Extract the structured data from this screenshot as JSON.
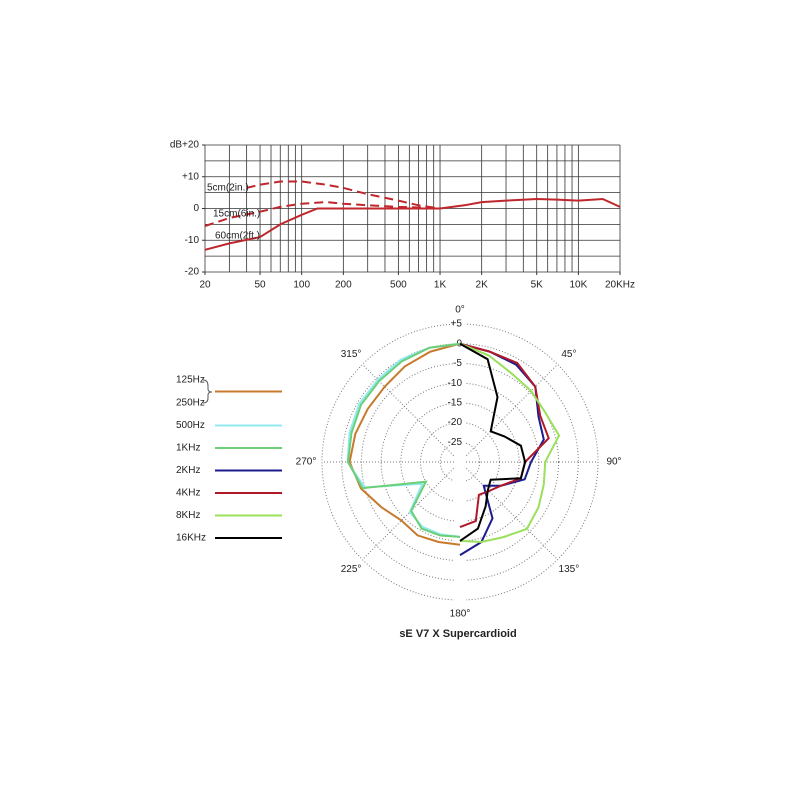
{
  "chart_data": [
    {
      "type": "line",
      "y_label": "dB",
      "xscale": "log",
      "xlim": [
        20,
        20000
      ],
      "xticks": [
        20,
        50,
        100,
        200,
        500,
        {
          "value": 1000,
          "label": "1K"
        },
        {
          "value": 2000,
          "label": "2K"
        },
        {
          "value": 5000,
          "label": "5K"
        },
        {
          "value": 10000,
          "label": "10K"
        },
        {
          "value": 20000,
          "label": "20KHz"
        }
      ],
      "xgrid": [
        20,
        30,
        40,
        50,
        60,
        70,
        80,
        90,
        100,
        200,
        300,
        400,
        500,
        600,
        700,
        800,
        900,
        1000,
        2000,
        3000,
        4000,
        5000,
        6000,
        7000,
        8000,
        9000,
        10000,
        20000
      ],
      "ylim": [
        -20,
        20
      ],
      "yticks": [
        -20,
        -10,
        0,
        {
          "value": 10,
          "label": "+10"
        },
        {
          "value": 20,
          "label": "+20"
        }
      ],
      "ygrid": [
        -20,
        -15,
        -10,
        -5,
        0,
        5,
        10,
        15,
        20
      ],
      "series": [
        {
          "name": "5cm(2in.)",
          "color": "#c0272d",
          "dash": true,
          "x": [
            40,
            50,
            70,
            100,
            150,
            200,
            300,
            500,
            700,
            1000
          ],
          "values": [
            6.5,
            7.5,
            8.5,
            8.5,
            7.5,
            6.5,
            4.5,
            2.5,
            1,
            0
          ]
        },
        {
          "name": "15cm(6in.)",
          "color": "#c0272d",
          "dash": true,
          "x": [
            20,
            30,
            50,
            70,
            100,
            150,
            200,
            300,
            500,
            700,
            1000
          ],
          "values": [
            -5.5,
            -3,
            -1,
            0.5,
            1.5,
            2,
            1.5,
            1,
            0.5,
            0.3,
            0
          ]
        },
        {
          "name": "60cm(2ft.)",
          "color": "#c0272d",
          "dash": false,
          "x": [
            20,
            30,
            50,
            70,
            100,
            130,
            200,
            300,
            500,
            700,
            1000,
            1500,
            2000,
            3000,
            5000,
            7000,
            10000,
            15000,
            20000
          ],
          "values": [
            -13,
            -11,
            -9,
            -5,
            -2,
            0,
            0,
            0,
            0,
            0,
            0,
            1,
            2,
            2.5,
            3,
            2.8,
            2.5,
            3,
            0.5
          ]
        }
      ]
    },
    {
      "type": "polar",
      "title": "sE V7 X  Supercardioid",
      "rlim": [
        -30,
        5
      ],
      "rticks": [
        {
          "value": 5,
          "label": "+5"
        },
        0,
        -5,
        -10,
        -15,
        -20,
        -25
      ],
      "thetaticks": [
        {
          "value": 0,
          "label": "0°"
        },
        {
          "value": 45,
          "label": "45°"
        },
        {
          "value": 90,
          "label": "90°"
        },
        {
          "value": 135,
          "label": "135°"
        },
        {
          "value": 180,
          "label": "180°"
        },
        {
          "value": 225,
          "label": "225°"
        },
        {
          "value": 270,
          "label": "270°"
        },
        {
          "value": 315,
          "label": "315°"
        }
      ],
      "series": [
        {
          "names": [
            "125Hz",
            "250Hz"
          ],
          "color": "#c87a2c",
          "theta": [
            180,
            195,
            210,
            225,
            240,
            255,
            270,
            285,
            300,
            315,
            330,
            345,
            360
          ],
          "values": [
            -9,
            -9,
            -8.5,
            -9,
            -7,
            -4,
            -2,
            -2.5,
            -3,
            -3,
            -2,
            -1,
            0
          ]
        },
        {
          "name": "500Hz",
          "color": "#90eaf0",
          "theta": [
            180,
            195,
            210,
            225,
            240,
            255,
            270,
            285,
            300,
            315,
            330,
            345,
            360
          ],
          "values": [
            -11,
            -11,
            -11,
            -12,
            -19,
            -5,
            -1.5,
            -1,
            -0.5,
            -0.5,
            0,
            0,
            0
          ]
        },
        {
          "name": "1KHz",
          "color": "#6ccf78",
          "theta": [
            180,
            195,
            210,
            225,
            240,
            255,
            270,
            285,
            300,
            315,
            330,
            345,
            360
          ],
          "values": [
            -11,
            -10.7,
            -10.5,
            -12.5,
            -20,
            -4.4,
            -1.6,
            -1.5,
            -1,
            -1,
            -0.5,
            0,
            0
          ]
        },
        {
          "name": "2KHz",
          "color": "#1c1c8c",
          "theta": [
            0,
            15,
            30,
            45,
            60,
            75,
            90,
            105,
            120,
            135,
            150,
            165,
            180
          ],
          "values": [
            0,
            -1,
            -1.5,
            -3,
            -7,
            -8,
            -12,
            -13,
            -18,
            -21.5,
            -13.5,
            -9,
            -6.4
          ]
        },
        {
          "name": "4KHz",
          "color": "#b0182a",
          "theta": [
            0,
            15,
            30,
            45,
            60,
            75,
            90,
            105,
            120,
            135,
            150,
            165,
            180
          ],
          "values": [
            0,
            -1,
            -1,
            -3,
            -6.5,
            -6.7,
            -13.5,
            -14,
            -18,
            -19.6,
            -20.4,
            -14.5,
            -13.5
          ]
        },
        {
          "name": "8KHz",
          "color": "#9ae05a",
          "theta": [
            0,
            15,
            30,
            45,
            60,
            75,
            90,
            105,
            120,
            135,
            150,
            165,
            180
          ],
          "values": [
            0,
            -2,
            -4,
            -4.5,
            -5,
            -4,
            -8.4,
            -8,
            -7,
            -6,
            -8,
            -9,
            -10
          ]
        },
        {
          "name": "16KHz",
          "color": "#000000",
          "theta": [
            0,
            15,
            30,
            45,
            60,
            75,
            90,
            105,
            120,
            135,
            150,
            165,
            180
          ],
          "values": [
            0,
            -3,
            -11,
            -19,
            -17,
            -14,
            -13.5,
            -14,
            -21,
            -20,
            -17,
            -12.5,
            -10
          ]
        }
      ]
    }
  ]
}
